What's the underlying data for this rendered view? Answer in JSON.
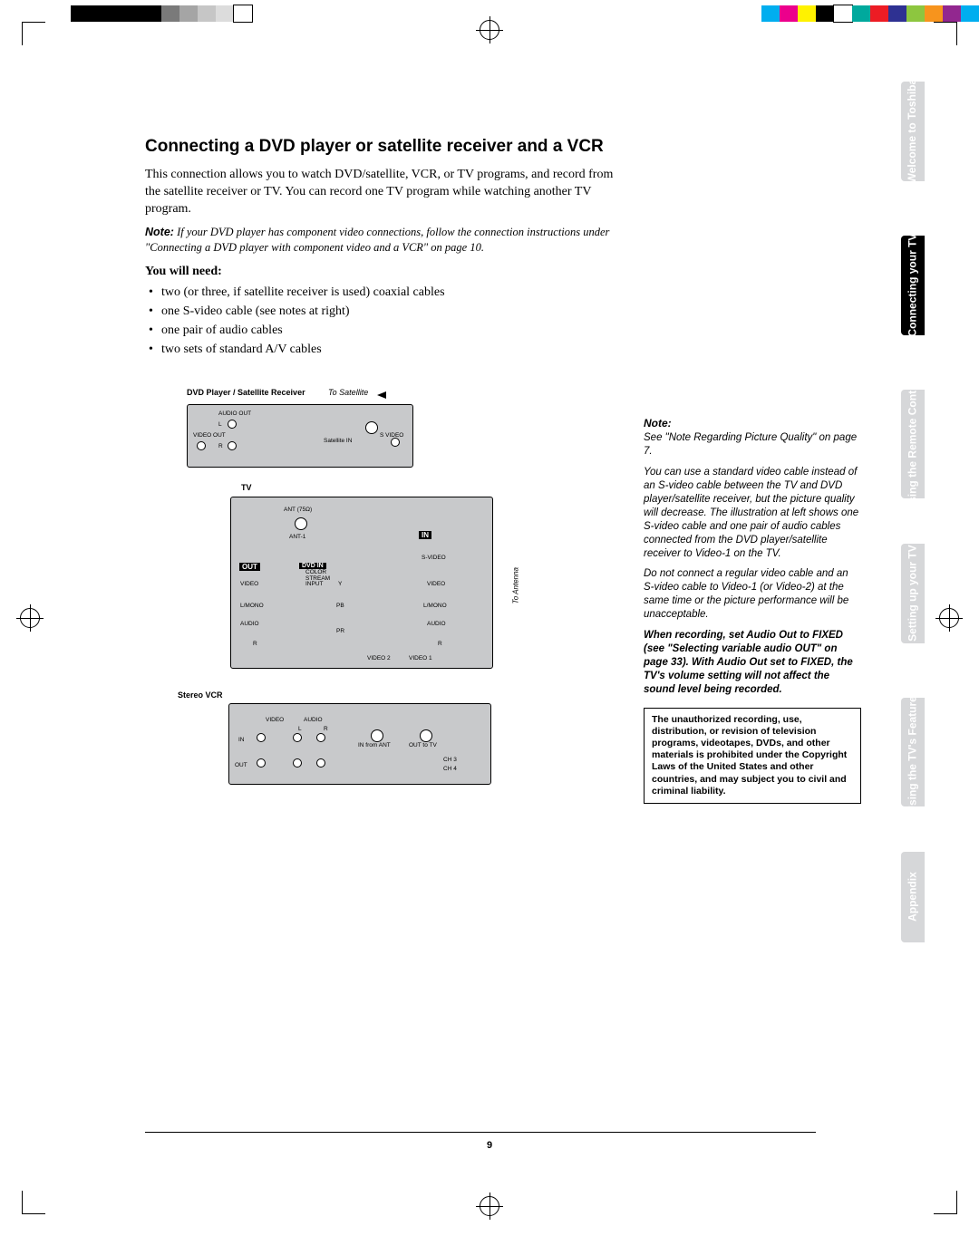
{
  "page_number": "9",
  "registration_bars": {
    "left": [
      "#000000",
      "#000000",
      "#000000",
      "#000000",
      "#000000",
      "#7a7a7a",
      "#a5a5a5",
      "#c6c6c6",
      "#dcdcdc",
      "#ffffff"
    ],
    "right": [
      "#00aeef",
      "#ec008c",
      "#fff200",
      "#000000",
      "#ffffff",
      "#00a99d",
      "#ed1c24",
      "#2e3192",
      "#8dc63f",
      "#f7941d",
      "#92278f",
      "#00aeef"
    ]
  },
  "title": "Connecting a DVD player or satellite receiver and a VCR",
  "intro": "This connection allows you to watch DVD/satellite, VCR, or TV programs, and record from the satellite receiver or TV. You can record one TV program while watching another TV program.",
  "note_lead": "Note:",
  "note_component": " If your DVD player has component video connections, follow the connection instructions under \"Connecting a DVD player with component video and a VCR\" on page 10.",
  "youneed_label": "You will need:",
  "needs": [
    "two (or three, if satellite receiver is used) coaxial cables",
    "one S-video cable (see notes at right)",
    "one pair of audio cables",
    "two sets of standard A/V cables"
  ],
  "diagram": {
    "dvd_label": "DVD Player / Satellite Receiver",
    "to_satellite": "To Satellite",
    "tv_label": "TV",
    "vcr_label": "Stereo VCR",
    "to_antenna": "To Antenna",
    "in_label": "IN",
    "out_label": "OUT",
    "dvdin_label": "DVD IN",
    "ports": {
      "audio_out": "AUDIO OUT",
      "video_out": "VIDEO OUT",
      "satellite_in": "Satellite IN",
      "s_video": "S VIDEO",
      "ant75": "ANT (75Ω)",
      "ant1": "ANT-1",
      "color_stream": "COLOR STREAM INPUT",
      "y": "Y",
      "pb": "PB",
      "pr": "PR",
      "video": "VIDEO",
      "lmono": "L/MONO",
      "audio": "AUDIO",
      "r": "R",
      "l": "L",
      "svideo": "S-VIDEO",
      "video1": "VIDEO 1",
      "video2": "VIDEO 2",
      "in_from_ant": "IN from ANT",
      "out_to_tv": "OUT to TV",
      "ch3": "CH 3",
      "ch4": "CH 4",
      "in": "IN",
      "out": "OUT"
    }
  },
  "side_note_head": "Note:",
  "side_note_1": "See \"Note Regarding Picture Quality\" on page 7.",
  "side_note_2": "You can use a standard video cable instead of an S-video cable between the TV and DVD player/satellite receiver, but the picture quality will decrease. The illustration at left shows one S-video cable and one pair of audio cables connected from the DVD player/satellite receiver to Video-1 on the TV.",
  "side_note_3": "Do not connect a regular video cable and an S-video cable to Video-1 (or Video-2) at the same time or the picture performance will be unacceptable.",
  "side_note_strong": "When recording, set Audio Out to FIXED (see \"Selecting variable audio OUT\" on page 33). With Audio Out set to FIXED, the TV's volume setting will not affect the sound level being recorded.",
  "legal": "The unauthorized recording, use, distribution, or revision of television programs, videotapes, DVDs, and other materials is prohibited under the Copyright Laws of the United States and other countries, and may subject you to civil and criminal liability.",
  "tabs": [
    {
      "label": "Welcome to Toshiba",
      "active": false
    },
    {
      "label": "Connecting your TV",
      "active": true
    },
    {
      "label": "Using the Remote Control",
      "active": false
    },
    {
      "label": "Setting up your TV",
      "active": false
    },
    {
      "label": "Using the TV's Features",
      "active": false
    },
    {
      "label": "Appendix",
      "active": false
    }
  ]
}
